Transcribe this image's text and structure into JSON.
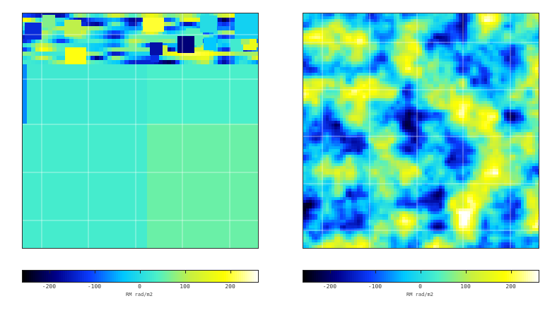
{
  "colormap": {
    "stops": [
      "#000000",
      "#00008a",
      "#0a3cff",
      "#00c8ff",
      "#4cf0c8",
      "#c8f040",
      "#ffff00",
      "#ffffff"
    ],
    "range": [
      -260,
      260
    ]
  },
  "chart_data": [
    {
      "type": "heatmap",
      "title": "",
      "xlabel": "",
      "ylabel": "",
      "description_visible": "Faraday rotation measure map with coarse block structure: mixed small cells in top strip, large uniform blocks below",
      "colorbar": {
        "ticks": [
          "-200",
          "-100",
          "0",
          "100",
          "200"
        ],
        "tick_values": [
          -200,
          -100,
          0,
          100,
          200
        ],
        "label": "RM rad/m2",
        "range": [
          -260,
          260
        ]
      },
      "grid": true,
      "uniform_blocks": [
        {
          "region": "upper-left large block",
          "value": 25
        },
        {
          "region": "upper-right large block",
          "value": 35
        },
        {
          "region": "lower-left large block",
          "value": 30
        },
        {
          "region": "lower-right large block",
          "value": 55
        },
        {
          "region": "left edge strip",
          "value": -70
        }
      ]
    },
    {
      "type": "heatmap",
      "title": "",
      "xlabel": "",
      "ylabel": "",
      "description_visible": "Faraday rotation measure map with fine-scale turbulent structure",
      "colorbar": {
        "ticks": [
          "-200",
          "-100",
          "0",
          "100",
          "200"
        ],
        "tick_values": [
          -200,
          -100,
          0,
          100,
          200
        ],
        "label": "RM rad/m2",
        "range": [
          -260,
          260
        ]
      },
      "grid": true
    }
  ]
}
